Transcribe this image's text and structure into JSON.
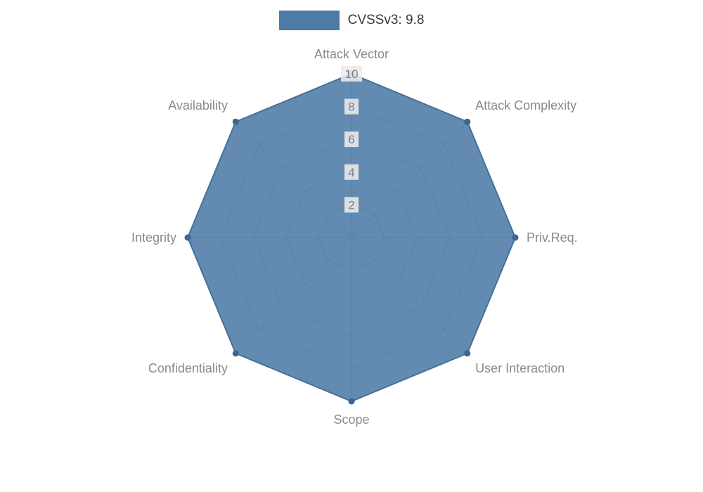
{
  "legend": {
    "label": "CVSSv3: 9.8",
    "swatch_color": "#4d7ba6"
  },
  "chart_data": {
    "type": "radar",
    "title": "CVSSv3: 9.8",
    "categories": [
      "Attack Vector",
      "Attack Complexity",
      "Priv.Req.",
      "User Interaction",
      "Scope",
      "Confidentiality",
      "Integrity",
      "Availability"
    ],
    "series": [
      {
        "name": "CVSSv3: 9.8",
        "values": [
          10,
          10,
          10,
          10,
          10,
          10,
          10,
          10
        ]
      }
    ],
    "ticks": [
      2,
      4,
      6,
      8,
      10
    ],
    "rmin": 0,
    "rmax": 10,
    "grid": true,
    "legend_position": "top",
    "colors": {
      "fill": "#4d7ba6",
      "stroke": "#476f99",
      "marker": "#3c6690",
      "grid": "#9b9b9b",
      "tick_text": "#7d7d7d",
      "tick_backdrop": "#ececec",
      "axis_label": "#8a8a8a",
      "legend_text": "#383838"
    }
  }
}
